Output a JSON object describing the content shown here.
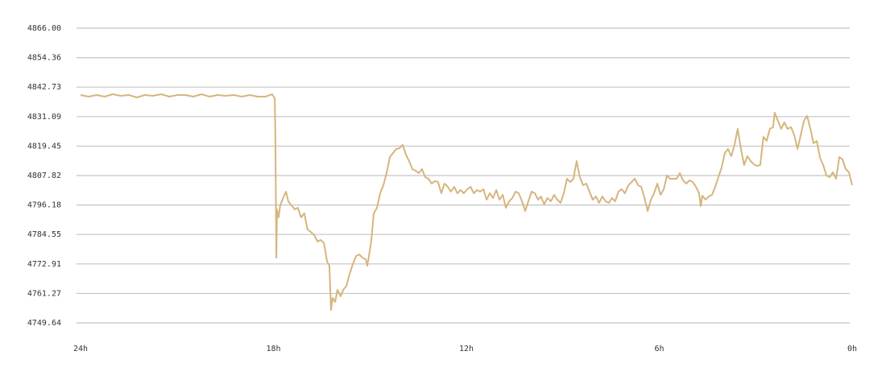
{
  "chart_data": {
    "type": "line",
    "color": "#d6b57e",
    "grid": true,
    "xlim": [
      24,
      0
    ],
    "ylim": [
      4749.64,
      4866
    ],
    "xticks": [
      {
        "value": 24,
        "label": "24h"
      },
      {
        "value": 18,
        "label": "18h"
      },
      {
        "value": 12,
        "label": "12h"
      },
      {
        "value": 6,
        "label": "6h"
      },
      {
        "value": 0,
        "label": "0h"
      }
    ],
    "yticks": [
      {
        "value": 4866,
        "label": "4866.00"
      },
      4854.36,
      4842.73,
      4831.09,
      4819.45,
      4807.82,
      4796.18,
      4784.55,
      4772.91,
      4761.27,
      4749.64
    ],
    "x": [
      24,
      23.75,
      23.5,
      23.25,
      23,
      22.75,
      22.5,
      22.25,
      22,
      21.75,
      21.49,
      21.24,
      20.99,
      20.74,
      20.49,
      20.24,
      19.99,
      19.74,
      19.49,
      19.24,
      18.99,
      18.74,
      18.49,
      18.24,
      18.04,
      17.96,
      17.94,
      17.91,
      17.89,
      17.84,
      17.79,
      17.69,
      17.61,
      17.54,
      17.44,
      17.34,
      17.24,
      17.14,
      17.04,
      16.94,
      16.84,
      16.73,
      16.63,
      16.53,
      16.43,
      16.33,
      16.26,
      16.21,
      16.16,
      16.08,
      16.01,
      15.91,
      15.83,
      15.73,
      15.63,
      15.53,
      15.43,
      15.33,
      15.23,
      15.13,
      15.08,
      15.03,
      14.96,
      14.88,
      14.78,
      14.68,
      14.58,
      14.48,
      14.38,
      14.28,
      14.18,
      14.08,
      13.98,
      13.88,
      13.78,
      13.68,
      13.58,
      13.48,
      13.38,
      13.28,
      13.18,
      13.08,
      12.98,
      12.88,
      12.78,
      12.68,
      12.58,
      12.48,
      12.38,
      12.28,
      12.18,
      12.08,
      11.97,
      11.87,
      11.77,
      11.67,
      11.57,
      11.47,
      11.37,
      11.27,
      11.17,
      11.07,
      10.97,
      10.87,
      10.77,
      10.67,
      10.57,
      10.47,
      10.37,
      10.27,
      10.17,
      10.07,
      9.97,
      9.87,
      9.77,
      9.68,
      9.58,
      9.48,
      9.37,
      9.27,
      9.17,
      9.07,
      8.97,
      8.87,
      8.77,
      8.67,
      8.57,
      8.47,
      8.37,
      8.27,
      8.17,
      8.07,
      7.97,
      7.87,
      7.77,
      7.67,
      7.57,
      7.47,
      7.37,
      7.27,
      7.17,
      7.07,
      6.96,
      6.86,
      6.76,
      6.66,
      6.56,
      6.46,
      6.36,
      6.26,
      6.16,
      6.06,
      5.96,
      5.86,
      5.76,
      5.66,
      5.56,
      5.46,
      5.36,
      5.26,
      5.16,
      5.06,
      4.96,
      4.86,
      4.76,
      4.71,
      4.66,
      4.56,
      4.46,
      4.36,
      4.26,
      4.16,
      4.06,
      3.96,
      3.86,
      3.76,
      3.66,
      3.56,
      3.46,
      3.36,
      3.26,
      3.16,
      3.06,
      2.96,
      2.86,
      2.76,
      2.66,
      2.56,
      2.46,
      2.41,
      2.31,
      2.21,
      2.11,
      2.01,
      1.9,
      1.8,
      1.7,
      1.6,
      1.5,
      1.4,
      1.3,
      1.2,
      1.1,
      1,
      0.9,
      0.8,
      0.7,
      0.6,
      0.5,
      0.4,
      0.3,
      0.2,
      0.1,
      0
    ],
    "values": [
      4839.61,
      4838.98,
      4839.61,
      4838.98,
      4839.93,
      4839.29,
      4839.61,
      4838.66,
      4839.61,
      4839.29,
      4839.93,
      4838.98,
      4839.61,
      4839.61,
      4838.98,
      4839.93,
      4838.98,
      4839.61,
      4839.29,
      4839.61,
      4838.98,
      4839.61,
      4838.98,
      4838.98,
      4839.93,
      4838.34,
      4823.08,
      4775.39,
      4794.47,
      4791.29,
      4796.06,
      4799.24,
      4801.46,
      4797.65,
      4796.06,
      4794.47,
      4795.1,
      4791.29,
      4792.88,
      4786.52,
      4785.57,
      4784.29,
      4781.75,
      4782.39,
      4781.12,
      4773.8,
      4772.21,
      4754.73,
      4759.5,
      4757.91,
      4762.68,
      4760.13,
      4762.68,
      4764.27,
      4769.03,
      4772.85,
      4776.03,
      4776.67,
      4775.39,
      4774.76,
      4772.21,
      4776.03,
      4781.75,
      4792.88,
      4795.1,
      4800.83,
      4804.01,
      4808.77,
      4815.13,
      4816.72,
      4818.31,
      4818.63,
      4819.9,
      4816.09,
      4813.54,
      4810.36,
      4809.73,
      4808.77,
      4810.36,
      4807.18,
      4806.55,
      4804.64,
      4805.6,
      4805.28,
      4800.83,
      4804.64,
      4803.37,
      4801.46,
      4803.37,
      4800.83,
      4802.1,
      4800.83,
      4802.42,
      4803.37,
      4800.83,
      4802.1,
      4801.46,
      4802.42,
      4798.28,
      4800.83,
      4798.92,
      4802.1,
      4798.28,
      4800.19,
      4795.1,
      4797.65,
      4798.92,
      4801.46,
      4800.83,
      4797.65,
      4793.83,
      4797.65,
      4801.46,
      4800.83,
      4798.28,
      4799.56,
      4796.38,
      4798.92,
      4797.65,
      4800.19,
      4798.28,
      4797.01,
      4800.83,
      4806.55,
      4805.28,
      4806.55,
      4813.54,
      4807.18,
      4804.01,
      4804.64,
      4801.46,
      4798.28,
      4799.56,
      4797.01,
      4799.56,
      4797.65,
      4797.01,
      4798.92,
      4797.65,
      4801.46,
      4802.42,
      4800.83,
      4804.01,
      4805.28,
      4806.55,
      4804.01,
      4803.37,
      4798.92,
      4793.83,
      4798.28,
      4800.83,
      4804.64,
      4800.19,
      4802.42,
      4807.82,
      4806.55,
      4806.55,
      4806.55,
      4808.77,
      4805.91,
      4804.64,
      4805.91,
      4805.28,
      4803.37,
      4800.83,
      4795.74,
      4799.87,
      4798.28,
      4799.56,
      4800.19,
      4803.37,
      4807.18,
      4811,
      4816.72,
      4818.31,
      4815.45,
      4819.9,
      4826.26,
      4818.31,
      4811.95,
      4815.45,
      4813.54,
      4812.27,
      4811.63,
      4811.95,
      4823.08,
      4821.49,
      4826.26,
      4826.89,
      4832.62,
      4829.44,
      4826.26,
      4828.8,
      4826.26,
      4826.89,
      4823.72,
      4818.31,
      4823.72,
      4829.44,
      4831.35,
      4826.26,
      4820.54,
      4821.49,
      4814.82,
      4811.95,
      4807.82,
      4807.18,
      4809.09,
      4806.55,
      4815.13,
      4814.18,
      4810.36,
      4809.09,
      4804.01
    ]
  }
}
